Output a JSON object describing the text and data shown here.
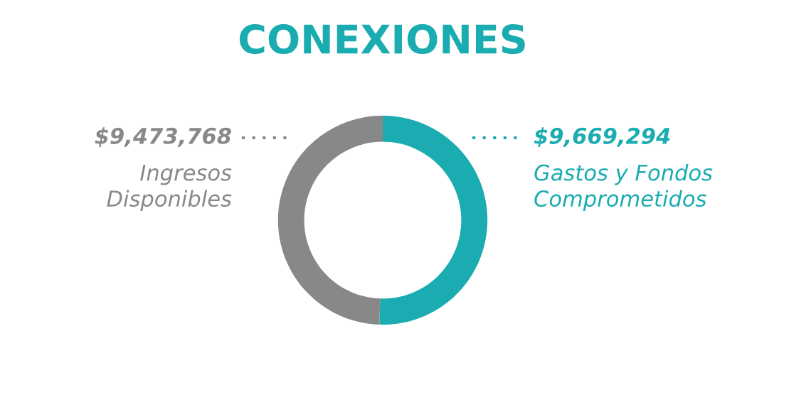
{
  "chart_data": {
    "type": "donut",
    "title": "CONEXIONES",
    "categories": [
      "Gastos y Fondos Comprometidos",
      "Ingresos Disponibles"
    ],
    "values": [
      9669294,
      9473768
    ],
    "colors": [
      "#1aacb0",
      "#888888"
    ],
    "value_labels": [
      "$9,669,294",
      "$9,473,768"
    ],
    "legend": false
  }
}
